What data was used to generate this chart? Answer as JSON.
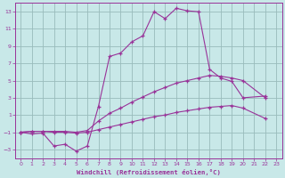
{
  "xlabel": "Windchill (Refroidissement éolien,°C)",
  "bg_color": "#c8e8e8",
  "grid_color": "#99bbbb",
  "line_color": "#993399",
  "xlim": [
    -0.5,
    23.5
  ],
  "ylim": [
    -4,
    14
  ],
  "yticks": [
    -3,
    -1,
    1,
    3,
    5,
    7,
    9,
    11,
    13
  ],
  "xticks": [
    0,
    1,
    2,
    3,
    4,
    5,
    6,
    7,
    8,
    9,
    10,
    11,
    12,
    13,
    14,
    15,
    16,
    17,
    18,
    19,
    20,
    21,
    22,
    23
  ],
  "series": [
    {
      "x": [
        0,
        1,
        2,
        3,
        4,
        5,
        6,
        7,
        8,
        9,
        10,
        11,
        12,
        13,
        14,
        15,
        16,
        17,
        18,
        19,
        20,
        22
      ],
      "y": [
        -1,
        -1.2,
        -1.1,
        -2.6,
        -2.4,
        -3.2,
        -2.6,
        2.0,
        7.8,
        8.2,
        9.5,
        10.2,
        13.0,
        12.2,
        13.4,
        13.1,
        13.0,
        6.3,
        5.3,
        4.9,
        3.0,
        3.2
      ]
    },
    {
      "x": [
        0,
        1,
        2,
        3,
        4,
        5,
        6,
        7,
        8,
        9,
        10,
        11,
        12,
        13,
        14,
        15,
        16,
        17,
        18,
        19,
        20,
        22
      ],
      "y": [
        -1,
        -0.9,
        -0.9,
        -0.9,
        -0.9,
        -1.0,
        -0.8,
        0.3,
        1.2,
        1.8,
        2.5,
        3.1,
        3.7,
        4.2,
        4.7,
        5.0,
        5.3,
        5.6,
        5.5,
        5.3,
        5.0,
        3.0
      ]
    },
    {
      "x": [
        0,
        1,
        2,
        3,
        4,
        5,
        6,
        7,
        8,
        9,
        10,
        11,
        12,
        13,
        14,
        15,
        16,
        17,
        18,
        19,
        20,
        22
      ],
      "y": [
        -1,
        -0.9,
        -0.9,
        -1.0,
        -1.0,
        -1.1,
        -1.0,
        -0.7,
        -0.4,
        -0.1,
        0.2,
        0.5,
        0.8,
        1.0,
        1.3,
        1.5,
        1.7,
        1.9,
        2.0,
        2.1,
        1.8,
        0.6
      ]
    }
  ]
}
